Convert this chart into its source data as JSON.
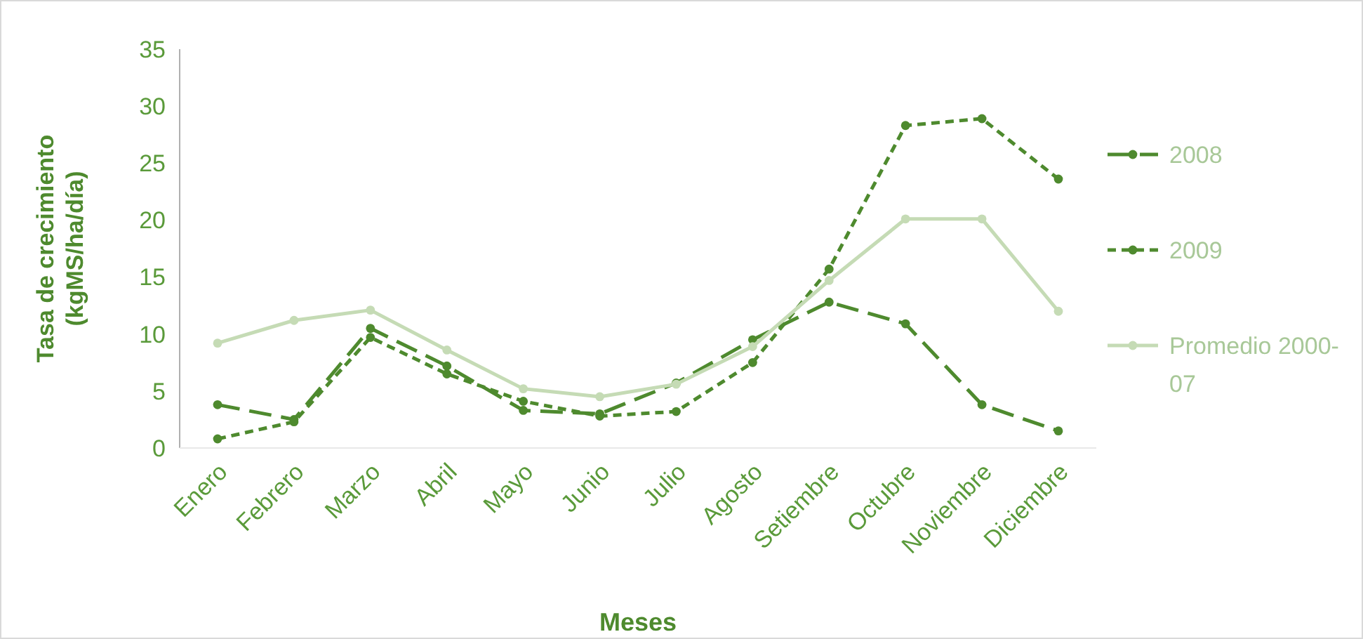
{
  "chart_data": {
    "type": "line",
    "xlabel": "Meses",
    "ylabel": "Tasa de crecimiento (kgMS/ha/día)",
    "categories": [
      "Enero",
      "Febrero",
      "Marzo",
      "Abril",
      "Mayo",
      "Junio",
      "Julio",
      "Agosto",
      "Setiembre",
      "Octubre",
      "Noviembre",
      "Diciembre"
    ],
    "series": [
      {
        "name": "2008",
        "color": "#4e8a2e",
        "line_style": "dashed",
        "values": [
          3.8,
          2.5,
          10.5,
          7.2,
          3.3,
          3.0,
          5.7,
          9.5,
          12.8,
          10.9,
          3.8,
          1.5
        ]
      },
      {
        "name": "2009",
        "color": "#4e8a2e",
        "line_style": "dotted",
        "values": [
          0.8,
          2.3,
          9.7,
          6.5,
          4.1,
          2.8,
          3.2,
          7.5,
          15.7,
          28.3,
          28.9,
          23.6
        ]
      },
      {
        "name": "Promedio 2000-07",
        "color": "#c5dbb5",
        "line_style": "solid",
        "values": [
          9.2,
          11.2,
          12.1,
          8.6,
          5.2,
          4.5,
          5.6,
          8.9,
          14.7,
          20.1,
          20.1,
          12.0
        ]
      }
    ],
    "ylim": [
      0,
      35
    ],
    "yticks": [
      0,
      5,
      10,
      15,
      20,
      25,
      30,
      35
    ],
    "grid": false,
    "legend": "right",
    "marker": "circle"
  }
}
